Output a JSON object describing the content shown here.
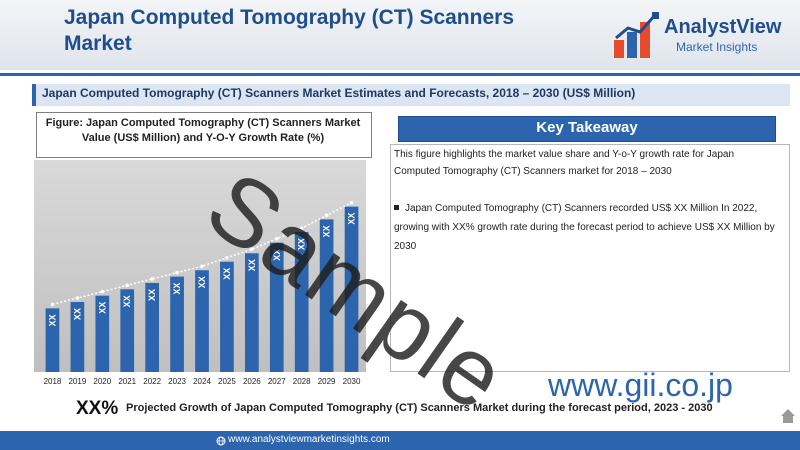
{
  "header": {
    "title": "Japan Computed Tomography (CT) Scanners Market",
    "logo_name": "AnalystView",
    "logo_sub": "Market Insights"
  },
  "subtitle": "Japan Computed Tomography (CT) Scanners Market Estimates and Forecasts, 2018 – 2030 (US$ Million)",
  "figure": {
    "title": "Figure: Japan Computed Tomography (CT) Scanners Market Value (US$ Million) and Y-O-Y Growth Rate (%)"
  },
  "chart_data": {
    "type": "bar",
    "categories": [
      "2018",
      "2019",
      "2020",
      "2021",
      "2022",
      "2023",
      "2024",
      "2025",
      "2026",
      "2027",
      "2028",
      "2029",
      "2030"
    ],
    "values": [
      30,
      33,
      36,
      39,
      42,
      45,
      48,
      52,
      56,
      61,
      66,
      72,
      78
    ],
    "bar_labels": [
      "XX",
      "XX",
      "XX",
      "XX",
      "XX",
      "XX",
      "XX",
      "XX",
      "XX",
      "XX",
      "XX",
      "XX",
      "XX"
    ],
    "line_series": [
      30,
      33,
      36,
      39,
      42,
      45,
      48,
      52,
      56,
      61,
      66,
      72,
      78
    ],
    "ylim": [
      0,
      100
    ],
    "grid": false,
    "colors": {
      "bar": "#2c65ad",
      "line": "#ffffff"
    }
  },
  "key_takeaway": {
    "title": "Key Takeaway",
    "paragraph": "This figure highlights the market value share and Y-o-Y growth rate for Japan Computed Tomography (CT) Scanners market for 2018 – 2030",
    "bullet": "Japan Computed Tomography (CT) Scanners recorded US$ XX Million In 2022, growing with XX% growth rate during the forecast period to achieve US$ XX Million by 2030"
  },
  "projection": {
    "value": "XX%",
    "text": "Projected Growth of Japan Computed Tomography (CT) Scanners Market during the forecast period, 2023 - 2030"
  },
  "footer": {
    "site": "www.analystviewmarketinsights.com",
    "gii": "www.gii.co.jp"
  },
  "watermark": "Sample"
}
